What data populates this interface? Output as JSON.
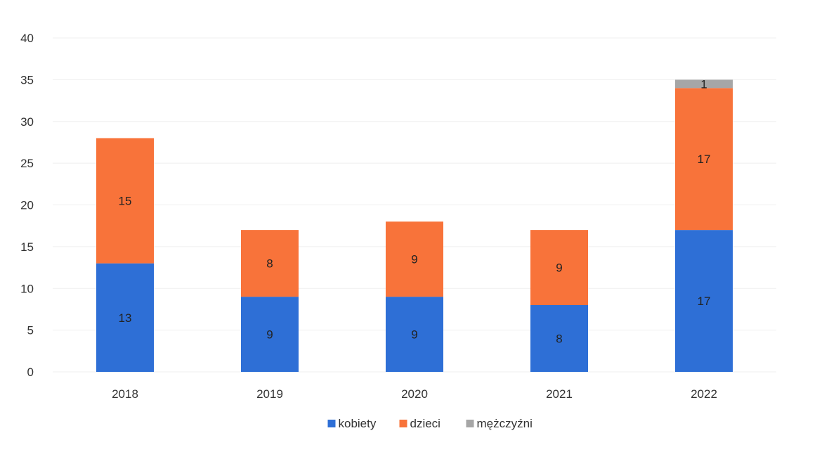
{
  "chart_data": {
    "type": "bar",
    "stacked": true,
    "categories": [
      "2018",
      "2019",
      "2020",
      "2021",
      "2022"
    ],
    "series": [
      {
        "name": "kobiety",
        "color": "#2E6FD6",
        "values": [
          13,
          9,
          9,
          8,
          17
        ]
      },
      {
        "name": "dzieci",
        "color": "#F8733A",
        "values": [
          15,
          8,
          9,
          9,
          17
        ]
      },
      {
        "name": "mężczyźni",
        "color": "#A6A6A6",
        "values": [
          0,
          0,
          0,
          0,
          1
        ]
      }
    ],
    "title": "",
    "xlabel": "",
    "ylabel": "",
    "ylim": [
      0,
      40
    ],
    "yticks": [
      0,
      5,
      10,
      15,
      20,
      25,
      30,
      35,
      40
    ],
    "grid": true,
    "legend": "bottom"
  }
}
